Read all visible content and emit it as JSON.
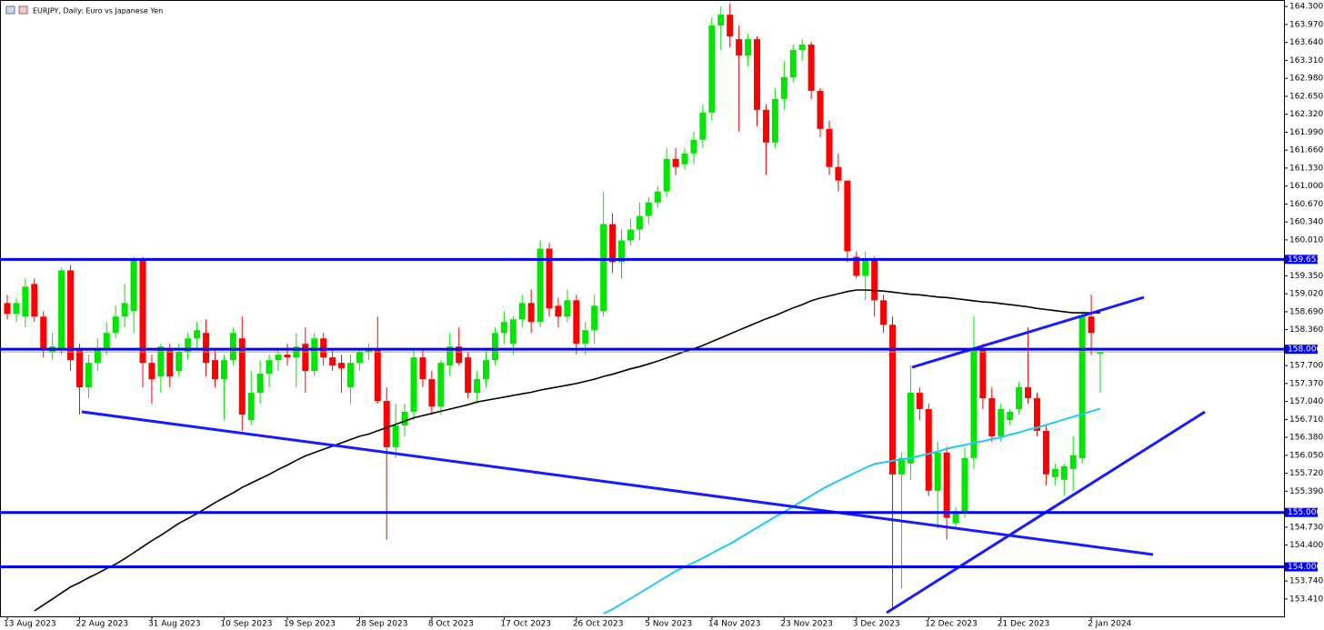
{
  "chart_data": {
    "type": "candlestick",
    "title": "EURJPY, Daily:  Euro vs Japanese Yen",
    "up_color": "#00e600",
    "down_color": "#ff0000",
    "categories": [
      "13 Aug 2023",
      null,
      null,
      null,
      null,
      null,
      null,
      null,
      "22 Aug 2023",
      null,
      null,
      null,
      null,
      null,
      null,
      null,
      "31 Aug 2023",
      null,
      null,
      null,
      null,
      null,
      null,
      null,
      "10 Sep 2023",
      null,
      null,
      null,
      null,
      null,
      null,
      "19 Sep 2023",
      null,
      null,
      null,
      null,
      null,
      null,
      null,
      "28 Sep 2023",
      null,
      null,
      null,
      null,
      null,
      null,
      null,
      "8 Oct 2023",
      null,
      null,
      null,
      null,
      null,
      null,
      null,
      "17 Oct 2023",
      null,
      null,
      null,
      null,
      null,
      null,
      null,
      "26 Oct 2023",
      null,
      null,
      null,
      null,
      null,
      null,
      null,
      "5 Nov 2023",
      null,
      null,
      null,
      null,
      null,
      null,
      "14 Nov 2023",
      null,
      null,
      null,
      null,
      null,
      null,
      null,
      "23 Nov 2023",
      null,
      null,
      null,
      null,
      null,
      null,
      null,
      "3 Dec 2023",
      null,
      null,
      null,
      null,
      null,
      null,
      null,
      "12 Dec 2023",
      null,
      null,
      null,
      null,
      null,
      null,
      null,
      "21 Dec 2023",
      null,
      null,
      null,
      null,
      null,
      null,
      null,
      null,
      null,
      "2 Jan 2024",
      null
    ],
    "open": [
      158.85,
      158.65,
      158.6,
      159.2,
      158.6,
      157.95,
      158.0,
      159.45,
      158.0,
      157.3,
      157.75,
      158.0,
      158.3,
      158.6,
      158.7,
      159.65,
      157.75,
      157.5,
      158.0,
      157.6,
      157.95,
      158.2,
      158.3,
      157.8,
      157.45,
      157.8,
      158.2,
      156.7,
      157.2,
      157.55,
      157.8,
      157.9,
      157.85,
      158.1,
      157.6,
      158.2,
      157.85,
      157.75,
      157.3,
      157.75,
      157.95,
      158.0,
      157.05,
      156.2,
      156.6,
      156.85,
      157.85,
      157.45,
      156.95,
      157.7,
      158.05,
      157.85,
      157.2,
      157.45,
      157.8,
      158.3,
      158.1,
      158.55,
      158.85,
      158.5,
      159.85,
      158.8,
      158.6,
      158.9,
      158.1,
      158.35,
      158.7,
      160.3,
      159.6,
      160.0,
      160.2,
      160.45,
      160.7,
      160.9,
      161.5,
      161.4,
      161.6,
      161.85,
      162.35,
      163.95,
      164.15,
      163.7,
      163.4,
      163.7,
      162.4,
      161.8,
      162.6,
      163.0,
      163.5,
      163.6,
      162.75,
      162.05,
      161.35,
      161.1,
      159.7,
      159.35,
      159.65,
      158.9,
      158.45,
      155.7,
      155.9,
      157.2,
      156.9,
      155.4,
      156.1,
      154.8,
      155.0,
      156.0,
      158.0,
      157.1,
      156.4,
      156.7,
      156.9,
      157.3,
      157.1,
      156.5,
      155.65,
      155.6,
      155.8,
      156.0,
      158.6,
      157.92
    ],
    "high": [
      159.0,
      158.95,
      159.3,
      159.3,
      158.7,
      158.3,
      159.5,
      159.55,
      158.1,
      157.9,
      158.2,
      158.5,
      158.8,
      159.2,
      159.7,
      159.7,
      157.9,
      158.1,
      158.1,
      158.1,
      158.3,
      158.5,
      158.55,
      158.0,
      157.9,
      158.4,
      158.6,
      157.6,
      157.8,
      157.9,
      158.0,
      158.1,
      158.3,
      158.4,
      158.3,
      158.3,
      158.0,
      157.9,
      157.9,
      158.0,
      158.1,
      158.6,
      157.3,
      157.0,
      157.0,
      158.0,
      158.0,
      157.6,
      157.8,
      158.3,
      158.4,
      157.95,
      157.6,
      158.0,
      158.4,
      158.7,
      158.6,
      159.0,
      159.1,
      160.0,
      159.95,
      158.95,
      159.1,
      159.0,
      158.5,
      159.0,
      160.9,
      160.5,
      160.2,
      160.4,
      160.7,
      160.8,
      161.0,
      161.7,
      161.7,
      161.7,
      162.0,
      162.5,
      164.1,
      164.3,
      164.35,
      163.95,
      163.8,
      163.75,
      162.5,
      162.8,
      163.3,
      163.6,
      163.7,
      163.65,
      162.8,
      162.2,
      161.6,
      161.1,
      159.8,
      159.8,
      159.7,
      159.0,
      158.6,
      156.1,
      157.7,
      157.3,
      157.0,
      156.3,
      156.2,
      155.1,
      156.2,
      158.6,
      158.1,
      157.3,
      157.0,
      156.9,
      157.4,
      158.4,
      157.2,
      156.6,
      155.9,
      155.9,
      156.4,
      158.7,
      159.0,
      157.95
    ],
    "low": [
      158.55,
      158.5,
      158.4,
      158.5,
      157.85,
      157.8,
      157.9,
      157.6,
      156.8,
      157.1,
      157.6,
      157.9,
      158.2,
      158.4,
      158.3,
      157.3,
      157.0,
      157.2,
      157.3,
      157.5,
      157.8,
      158.0,
      157.5,
      157.3,
      156.7,
      157.7,
      156.5,
      156.6,
      157.0,
      157.3,
      157.6,
      157.7,
      157.3,
      157.2,
      157.5,
      157.7,
      157.6,
      157.2,
      157.0,
      157.6,
      157.8,
      157.0,
      154.5,
      156.0,
      156.4,
      156.7,
      157.3,
      156.8,
      156.8,
      157.5,
      157.7,
      157.1,
      157.0,
      157.3,
      157.7,
      158.1,
      157.9,
      158.4,
      158.3,
      158.4,
      158.6,
      158.4,
      158.5,
      157.9,
      157.9,
      158.1,
      158.6,
      159.4,
      159.3,
      159.9,
      160.0,
      160.3,
      160.6,
      160.8,
      161.2,
      161.3,
      161.4,
      161.7,
      162.2,
      163.5,
      163.55,
      162.0,
      163.2,
      162.1,
      161.2,
      161.7,
      162.4,
      162.9,
      163.3,
      162.6,
      161.9,
      161.2,
      160.9,
      159.6,
      159.3,
      158.9,
      158.6,
      158.3,
      153.25,
      153.6,
      155.6,
      156.7,
      155.3,
      154.7,
      154.5,
      154.7,
      154.9,
      155.8,
      156.9,
      156.3,
      156.3,
      156.6,
      156.8,
      157.0,
      156.4,
      155.5,
      155.5,
      155.3,
      155.4,
      155.9,
      157.9,
      157.2
    ],
    "close": [
      158.65,
      158.85,
      159.15,
      158.6,
      158.0,
      158.05,
      159.45,
      157.8,
      157.3,
      157.75,
      158.0,
      158.3,
      158.6,
      158.85,
      159.65,
      157.75,
      157.45,
      158.05,
      157.5,
      157.95,
      158.2,
      158.35,
      157.75,
      157.45,
      157.8,
      158.3,
      156.8,
      157.2,
      157.55,
      157.8,
      157.9,
      157.85,
      158.05,
      157.6,
      158.2,
      157.85,
      157.7,
      157.65,
      157.75,
      157.95,
      158.0,
      157.05,
      156.2,
      156.6,
      156.85,
      157.85,
      157.45,
      156.95,
      157.75,
      158.05,
      157.75,
      157.2,
      157.45,
      157.8,
      158.3,
      158.5,
      158.55,
      158.85,
      158.5,
      159.85,
      158.75,
      158.6,
      158.9,
      158.1,
      158.35,
      158.8,
      160.3,
      159.6,
      160.0,
      160.2,
      160.45,
      160.7,
      160.9,
      161.5,
      161.35,
      161.6,
      161.85,
      162.35,
      163.95,
      164.15,
      163.75,
      163.4,
      163.7,
      162.4,
      161.8,
      162.6,
      163.0,
      163.5,
      163.6,
      162.75,
      162.05,
      161.35,
      161.1,
      159.8,
      159.35,
      159.65,
      158.9,
      158.45,
      155.7,
      156.0,
      157.2,
      156.9,
      155.4,
      156.1,
      154.9,
      155.0,
      156.0,
      158.0,
      157.1,
      156.4,
      156.9,
      156.85,
      157.3,
      157.1,
      156.5,
      155.7,
      155.8,
      155.85,
      156.05,
      158.6,
      158.3,
      157.95
    ],
    "moving_averages": [
      {
        "color": "#000000",
        "values": [
          null,
          null,
          null,
          153.19,
          153.3,
          153.41,
          153.52,
          153.63,
          153.71,
          153.8,
          153.88,
          153.97,
          154.05,
          154.15,
          154.26,
          154.37,
          154.48,
          154.58,
          154.69,
          154.8,
          154.89,
          154.98,
          155.08,
          155.18,
          155.27,
          155.36,
          155.46,
          155.54,
          155.62,
          155.7,
          155.79,
          155.87,
          155.96,
          156.04,
          156.1,
          156.16,
          156.22,
          156.28,
          156.34,
          156.4,
          156.44,
          156.5,
          156.56,
          156.62,
          156.68,
          156.74,
          156.78,
          156.82,
          156.86,
          156.9,
          156.94,
          156.98,
          157.03,
          157.06,
          157.09,
          157.12,
          157.15,
          157.18,
          157.21,
          157.25,
          157.28,
          157.31,
          157.34,
          157.37,
          157.41,
          157.45,
          157.5,
          157.54,
          157.59,
          157.64,
          157.68,
          157.73,
          157.78,
          157.84,
          157.9,
          157.96,
          158.01,
          158.07,
          158.14,
          158.21,
          158.28,
          158.35,
          158.42,
          158.49,
          158.56,
          158.62,
          158.69,
          158.76,
          158.82,
          158.89,
          158.94,
          158.98,
          159.02,
          159.06,
          159.09,
          159.09,
          159.08,
          159.07,
          159.05,
          159.03,
          159.01,
          159.0,
          158.98,
          158.96,
          158.95,
          158.93,
          158.91,
          158.89,
          158.87,
          158.86,
          158.84,
          158.82,
          158.8,
          158.78,
          158.75,
          158.73,
          158.71,
          158.69,
          158.67,
          158.67,
          158.67,
          158.67
        ]
      },
      {
        "color": "#1ec8ff",
        "values": [
          null,
          null,
          null,
          null,
          null,
          null,
          null,
          null,
          null,
          null,
          null,
          null,
          null,
          null,
          null,
          null,
          null,
          null,
          null,
          null,
          null,
          null,
          null,
          null,
          null,
          null,
          null,
          null,
          null,
          null,
          null,
          null,
          null,
          null,
          null,
          null,
          null,
          null,
          null,
          null,
          null,
          null,
          null,
          null,
          null,
          null,
          null,
          null,
          null,
          null,
          null,
          null,
          null,
          null,
          null,
          null,
          null,
          null,
          null,
          null,
          null,
          null,
          null,
          null,
          null,
          null,
          153.14,
          153.22,
          153.32,
          153.42,
          153.52,
          153.62,
          153.72,
          153.82,
          153.92,
          154.0,
          154.08,
          154.16,
          154.25,
          154.34,
          154.42,
          154.52,
          154.62,
          154.72,
          154.82,
          154.92,
          155.01,
          155.11,
          155.21,
          155.31,
          155.41,
          155.5,
          155.58,
          155.66,
          155.74,
          155.82,
          155.89,
          155.92,
          155.95,
          155.98,
          156.0,
          156.04,
          156.08,
          156.12,
          156.17,
          156.21,
          156.24,
          156.28,
          156.31,
          156.35,
          156.38,
          156.43,
          156.47,
          156.52,
          156.56,
          156.61,
          156.66,
          156.71,
          156.76,
          156.81,
          156.86,
          156.91
        ]
      }
    ],
    "levels": [
      {
        "value": 159.652,
        "label": "159.652"
      },
      {
        "value": 158.0,
        "label": "158.000"
      },
      {
        "value": 155.0,
        "label": "155.000"
      },
      {
        "value": 154.0,
        "label": "154.000"
      }
    ],
    "level_color": "#0000ff",
    "ylim": [
      153.09,
      164.42
    ],
    "yticks": [
      {
        "value": 164.3,
        "label": "164.300"
      },
      {
        "value": 163.97,
        "label": "163.970"
      },
      {
        "value": 163.64,
        "label": "163.640"
      },
      {
        "value": 163.31,
        "label": "163.310"
      },
      {
        "value": 162.98,
        "label": "162.980"
      },
      {
        "value": 162.65,
        "label": "162.650"
      },
      {
        "value": 162.32,
        "label": "162.320"
      },
      {
        "value": 161.99,
        "label": "161.990"
      },
      {
        "value": 161.66,
        "label": "161.660"
      },
      {
        "value": 161.33,
        "label": "161.330"
      },
      {
        "value": 161.0,
        "label": "161.000"
      },
      {
        "value": 160.67,
        "label": "160.670"
      },
      {
        "value": 160.34,
        "label": "160.340"
      },
      {
        "value": 160.01,
        "label": "160.010"
      },
      {
        "value": 159.35,
        "label": "159.350"
      },
      {
        "value": 159.02,
        "label": "159.020"
      },
      {
        "value": 158.69,
        "label": "158.690"
      },
      {
        "value": 158.36,
        "label": "158.360"
      },
      {
        "value": 157.7,
        "label": "157.700"
      },
      {
        "value": 157.37,
        "label": "157.370"
      },
      {
        "value": 157.04,
        "label": "157.040"
      },
      {
        "value": 156.71,
        "label": "156.710"
      },
      {
        "value": 156.38,
        "label": "156.380"
      },
      {
        "value": 156.05,
        "label": "156.050"
      },
      {
        "value": 155.72,
        "label": "155.720"
      },
      {
        "value": 155.39,
        "label": "155.390"
      },
      {
        "value": 154.73,
        "label": "154.730"
      },
      {
        "value": 154.4,
        "label": "154.400"
      },
      {
        "value": 153.74,
        "label": "153.740"
      },
      {
        "value": 153.41,
        "label": "153.410"
      }
    ]
  }
}
